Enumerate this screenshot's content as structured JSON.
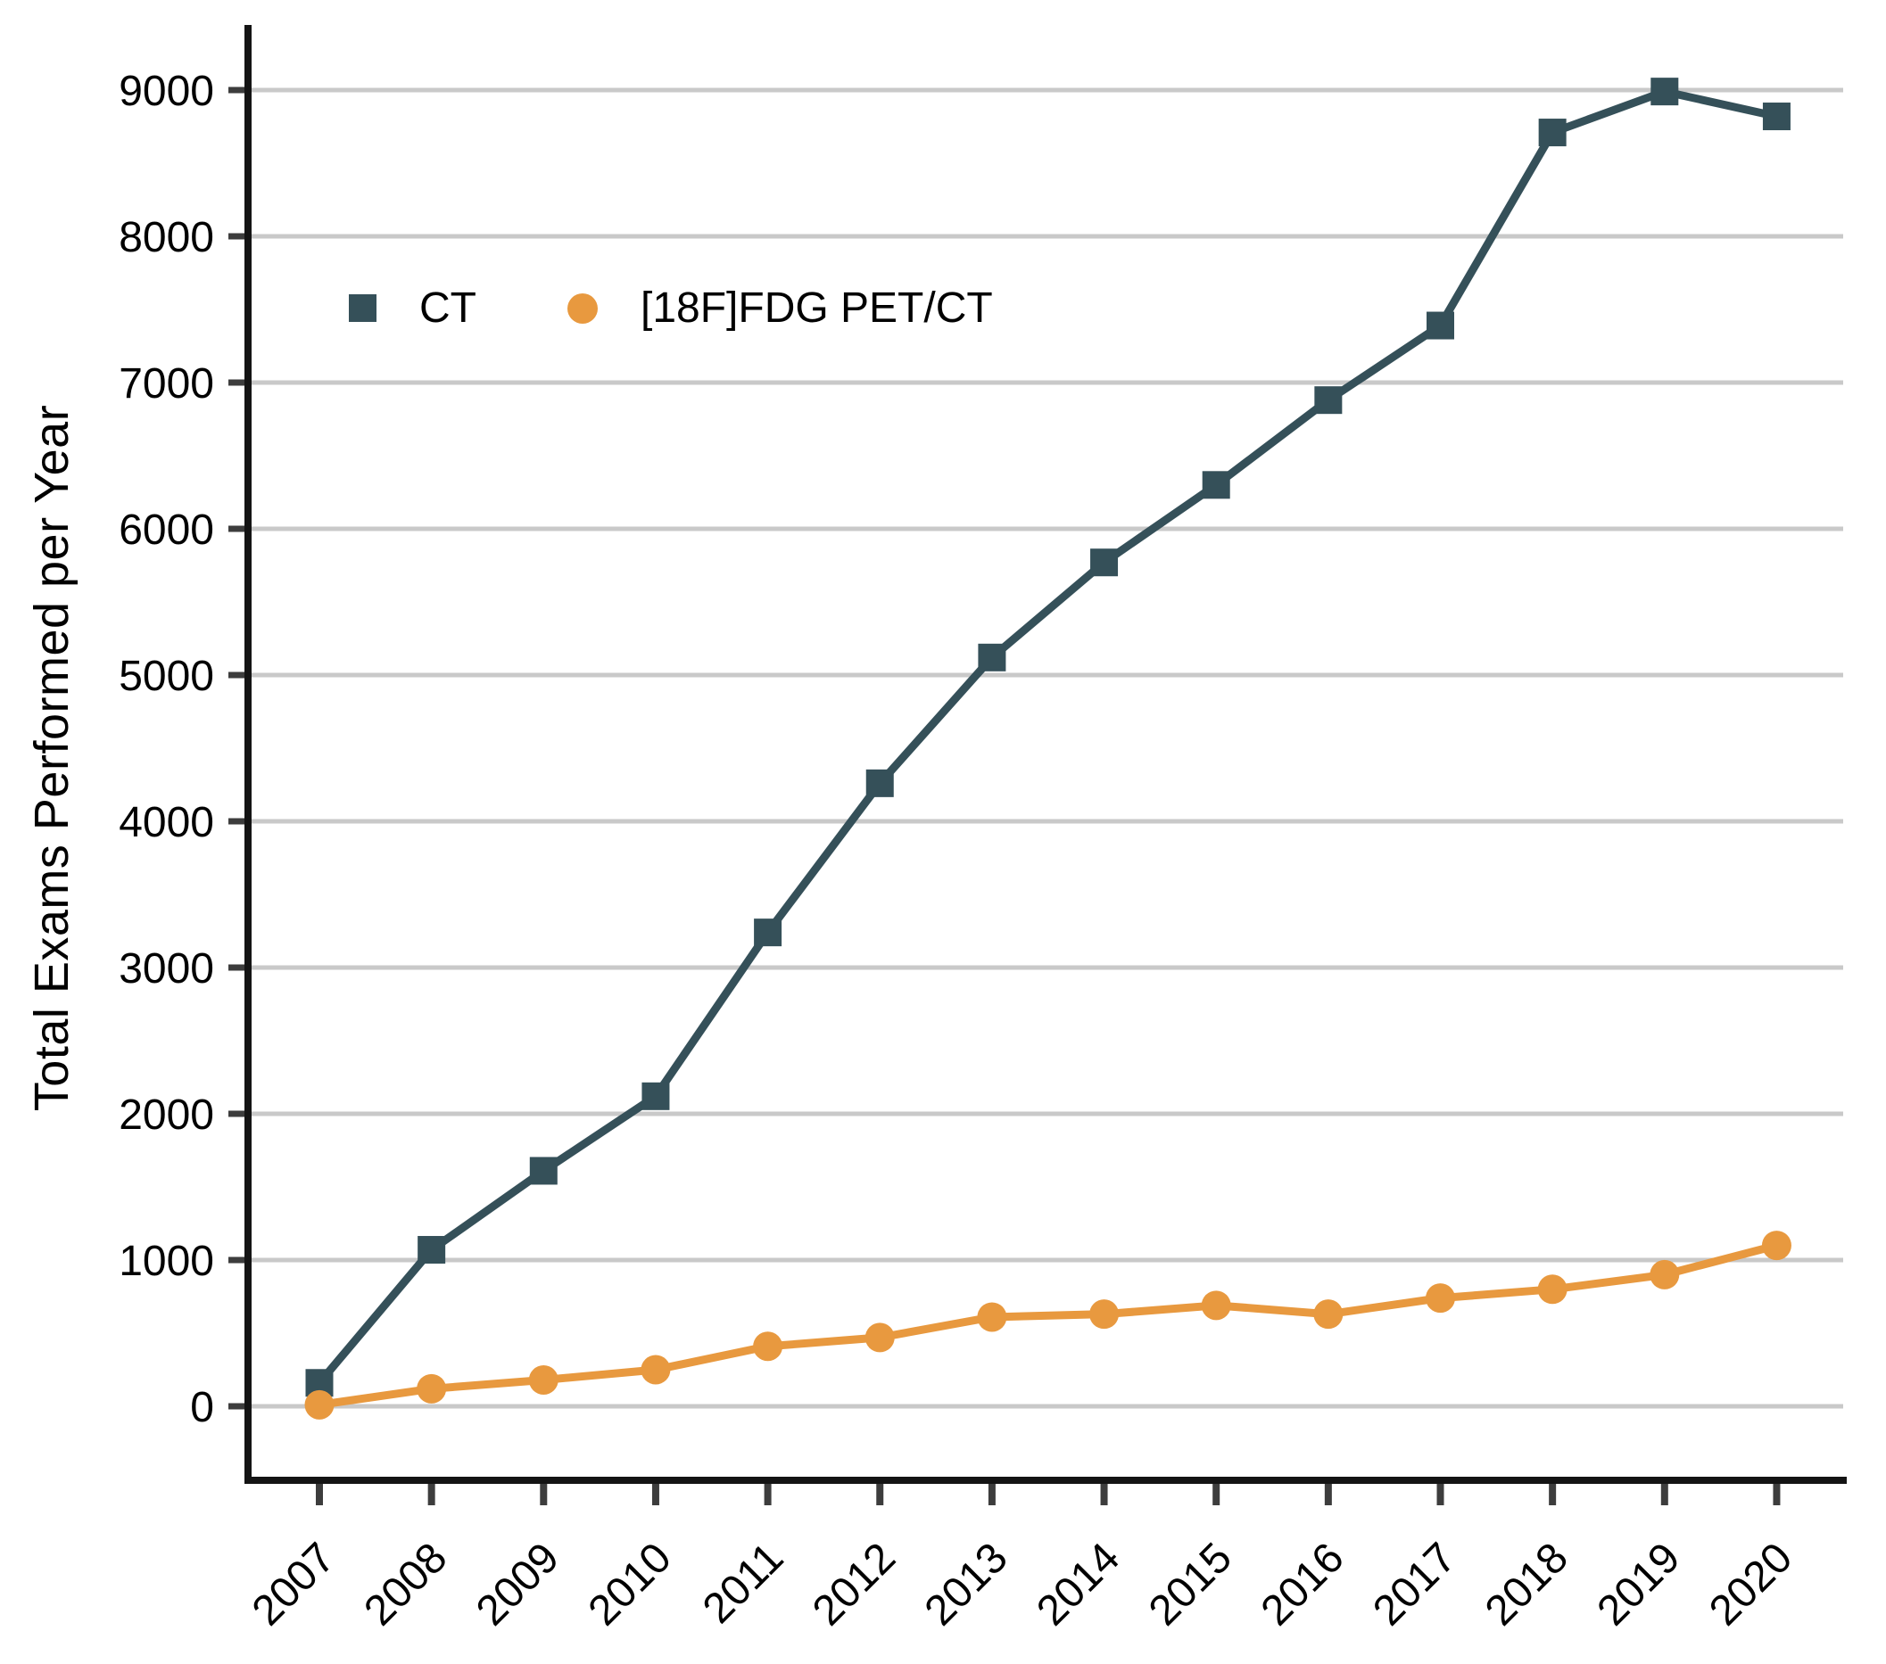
{
  "chart_data": {
    "type": "line",
    "title": "",
    "xlabel": "",
    "ylabel": "Total Exams Performed per Year",
    "categories": [
      "2007",
      "2008",
      "2009",
      "2010",
      "2011",
      "2012",
      "2013",
      "2014",
      "2015",
      "2016",
      "2017",
      "2018",
      "2019",
      "2020"
    ],
    "series": [
      {
        "name": "CT",
        "marker": "square",
        "color": "#355059",
        "values": [
          160,
          1070,
          1610,
          2120,
          3240,
          4260,
          5120,
          5770,
          6300,
          6880,
          7390,
          8710,
          8990,
          8820
        ]
      },
      {
        "name": "[18F]FDG PET/CT",
        "marker": "circle",
        "color": "#e8993f",
        "values": [
          10,
          120,
          180,
          250,
          410,
          470,
          610,
          630,
          690,
          630,
          740,
          800,
          900,
          1100
        ]
      }
    ],
    "yticks": [
      0,
      1000,
      2000,
      3000,
      4000,
      5000,
      6000,
      7000,
      8000,
      9000
    ],
    "ylim": [
      -500,
      9430
    ],
    "grid": "horizontal",
    "legend_position": "top-left-inside"
  },
  "style": {
    "background": "#ffffff",
    "grid_color": "#c9c9c9",
    "axis_color": "#141414",
    "tick_color": "#3d3d3d",
    "text_color": "#000000"
  }
}
